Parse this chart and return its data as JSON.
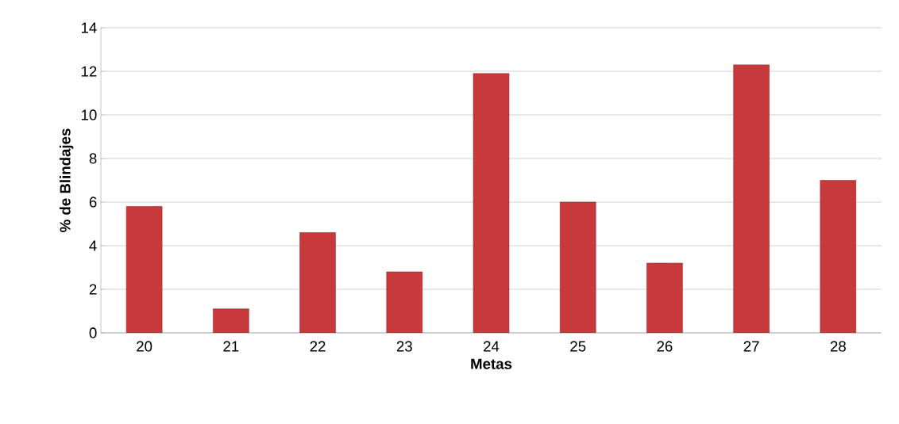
{
  "chart_data": {
    "type": "bar",
    "xlabel": "Metas",
    "ylabel": "% de Blindajes",
    "categories": [
      "20",
      "21",
      "22",
      "23",
      "24",
      "25",
      "26",
      "27",
      "28"
    ],
    "values": [
      5.8,
      1.1,
      4.6,
      2.8,
      11.9,
      6.0,
      3.2,
      12.3,
      7.0
    ],
    "color": "#c8393b",
    "ylim": [
      0,
      14
    ],
    "yticks": [
      0,
      2,
      4,
      6,
      8,
      10,
      12,
      14
    ],
    "grid": "y"
  }
}
